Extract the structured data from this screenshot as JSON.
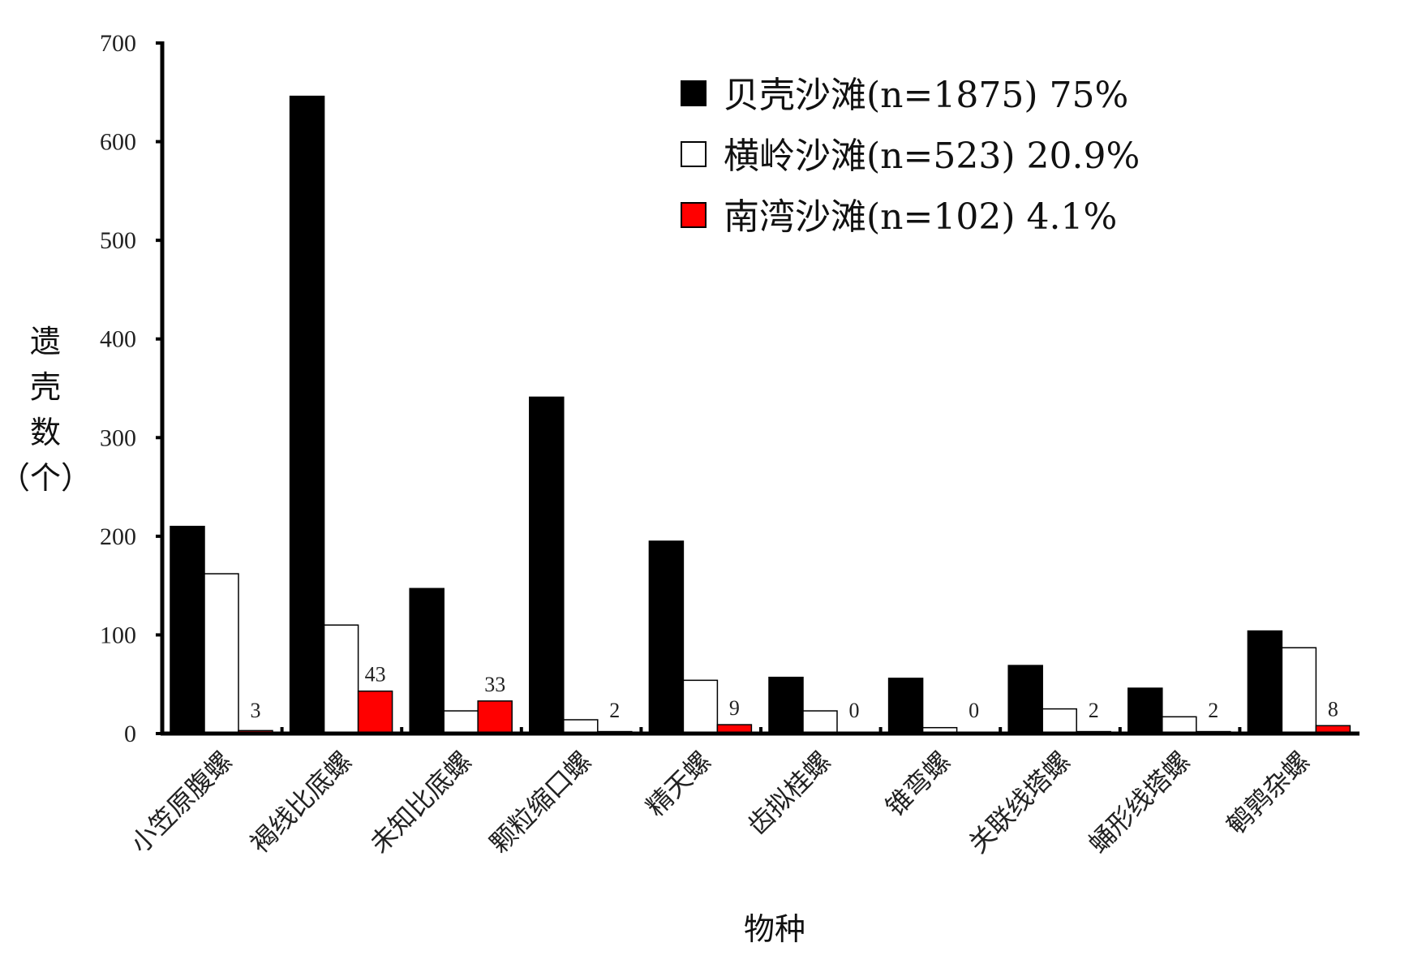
{
  "chart_data": {
    "type": "bar",
    "title": "",
    "xlabel": "物种",
    "ylabel": "遗壳数（个）",
    "ylabel_chars": [
      "遗",
      "壳",
      "数",
      "（个）"
    ],
    "ylim": [
      0,
      700
    ],
    "yticks": [
      0,
      100,
      200,
      300,
      400,
      500,
      600,
      700
    ],
    "grid": false,
    "legend_position": "top-right",
    "categories": [
      "小笠原腹螺",
      "褐线比底螺",
      "未知比底螺",
      "颗粒缩口螺",
      "精天螺",
      "齿拟桂螺",
      "锥弯螺",
      "关联线塔螺",
      "蛹形线塔螺",
      "鹌鹑杂螺"
    ],
    "series": [
      {
        "name": "贝壳沙滩(n=1875) 75%",
        "color": "#000000",
        "values": [
          210,
          646,
          147,
          341,
          195,
          57,
          56,
          69,
          46,
          104
        ]
      },
      {
        "name": "横岭沙滩(n=523) 20.9%",
        "color": "#ffffff",
        "values": [
          162,
          110,
          23,
          14,
          54,
          23,
          6,
          25,
          17,
          87
        ]
      },
      {
        "name": "南湾沙滩(n=102) 4.1%",
        "color": "#ff0000",
        "values": [
          3,
          43,
          33,
          2,
          9,
          0,
          0,
          2,
          2,
          8
        ]
      }
    ],
    "data_labels": [
      "3",
      "43",
      "33",
      "2",
      "9",
      "0",
      "0",
      "2",
      "2",
      "8"
    ]
  }
}
